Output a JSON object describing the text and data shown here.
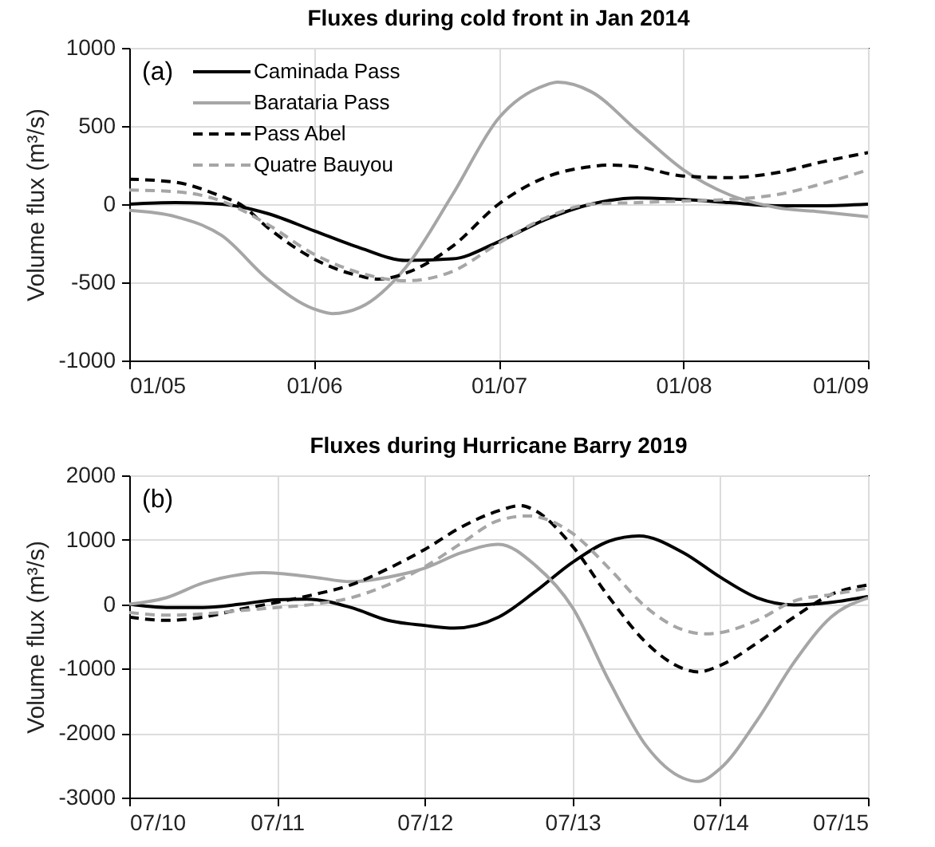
{
  "chart_data": [
    {
      "type": "line",
      "title": "Fluxes during cold front in Jan 2014",
      "ylabel": "Volume flux (m³/s)",
      "annotations": [
        "(a)"
      ],
      "xlim": [
        "--01-05",
        "--01-09"
      ],
      "xticks": [
        {
          "value": "--01-05",
          "label": "01/05"
        },
        {
          "value": "--01-06",
          "label": "01/06"
        },
        {
          "value": "--01-07",
          "label": "01/07"
        },
        {
          "value": "--01-08",
          "label": "01/08"
        },
        {
          "value": "--01-09",
          "label": "01/09"
        }
      ],
      "ylim": [
        -1000,
        1000
      ],
      "yticks": [
        -1000,
        -500,
        0,
        500,
        1000
      ],
      "grid": true,
      "legend": "top left",
      "series": [
        {
          "name": "Caminada Pass",
          "color": "#000000",
          "line_style": "solid",
          "x": [
            "--01-05T00:00",
            "--01-05T06:00",
            "--01-05T12:00",
            "--01-05T18:00",
            "--01-06T00:00",
            "--01-06T06:00",
            "--01-06T12:00",
            "--01-06T18:00",
            "--01-07T00:00",
            "--01-07T06:00",
            "--01-07T12:00",
            "--01-07T18:00",
            "--01-08T00:00",
            "--01-08T06:00",
            "--01-08T12:00",
            "--01-08T18:00",
            "--01-09T00:00"
          ],
          "values": [
            0,
            10,
            0,
            -60,
            -170,
            -280,
            -360,
            -350,
            -240,
            -100,
            0,
            40,
            30,
            10,
            -10,
            -10,
            0
          ]
        },
        {
          "name": "Barataria Pass",
          "color": "#a6a6a6",
          "line_style": "solid",
          "x": [
            "--01-05T00:00",
            "--01-05T06:00",
            "--01-05T12:00",
            "--01-05T18:00",
            "--01-06T00:00",
            "--01-06T02:24",
            "--01-06T06:00",
            "--01-06T12:00",
            "--01-06T18:00",
            "--01-07T00:00",
            "--01-07T06:00",
            "--01-07T07:41",
            "--01-07T12:00",
            "--01-07T18:00",
            "--01-08T00:00",
            "--01-08T06:00",
            "--01-08T12:00",
            "--01-08T18:00",
            "--01-09T00:00"
          ],
          "values": [
            -40,
            -80,
            -200,
            -480,
            -670,
            -700,
            -660,
            -400,
            60,
            550,
            760,
            780,
            720,
            470,
            220,
            60,
            -20,
            -50,
            -80
          ]
        },
        {
          "name": "Pass Abel",
          "color": "#000000",
          "line_style": "dashed",
          "x": [
            "--01-05T00:00",
            "--01-05T06:00",
            "--01-05T12:00",
            "--01-05T14:24",
            "--01-05T18:00",
            "--01-06T00:00",
            "--01-06T06:00",
            "--01-06T08:24",
            "--01-06T12:00",
            "--01-06T18:00",
            "--01-07T00:00",
            "--01-07T06:00",
            "--01-07T12:00",
            "--01-07T14:24",
            "--01-07T18:00",
            "--01-08T00:00",
            "--01-08T06:00",
            "--01-08T12:00",
            "--01-08T18:00",
            "--01-09T00:00"
          ],
          "values": [
            160,
            140,
            50,
            0,
            -150,
            -350,
            -460,
            -480,
            -440,
            -270,
            0,
            170,
            240,
            250,
            240,
            180,
            170,
            200,
            270,
            330
          ]
        },
        {
          "name": "Quatre Bauyou",
          "color": "#a6a6a6",
          "line_style": "dashed",
          "x": [
            "--01-05T00:00",
            "--01-05T06:00",
            "--01-05T12:00",
            "--01-05T18:00",
            "--01-06T00:00",
            "--01-06T06:00",
            "--01-06T12:00",
            "--01-06T18:00",
            "--01-07T00:00",
            "--01-07T06:00",
            "--01-07T12:00",
            "--01-07T18:00",
            "--01-08T00:00",
            "--01-08T06:00",
            "--01-08T12:00",
            "--01-08T18:00",
            "--01-09T00:00"
          ],
          "values": [
            90,
            80,
            20,
            -130,
            -320,
            -440,
            -490,
            -430,
            -250,
            -90,
            0,
            10,
            20,
            30,
            60,
            130,
            220
          ]
        }
      ]
    },
    {
      "type": "line",
      "title": "Fluxes during Hurricane Barry 2019",
      "ylabel": "Volume flux (m³/s)",
      "annotations": [
        "(b)"
      ],
      "xlim": [
        "--07-10",
        "--07-15"
      ],
      "xticks": [
        {
          "value": "--07-10",
          "label": "07/10"
        },
        {
          "value": "--07-11",
          "label": "07/11"
        },
        {
          "value": "--07-12",
          "label": "07/12"
        },
        {
          "value": "--07-13",
          "label": "07/13"
        },
        {
          "value": "--07-14",
          "label": "07/14"
        },
        {
          "value": "--07-15",
          "label": "07/15"
        }
      ],
      "ylim": [
        -3000,
        2000
      ],
      "yticks": [
        -3000,
        -2000,
        -1000,
        0,
        1000,
        2000
      ],
      "grid": true,
      "series": [
        {
          "color": "#000000",
          "line_style": "solid",
          "x": [
            "--07-10T00:00",
            "--07-10T06:00",
            "--07-10T12:00",
            "--07-10T18:00",
            "--07-11T00:00",
            "--07-11T04:48",
            "--07-11T12:00",
            "--07-11T18:00",
            "--07-12T00:00",
            "--07-12T04:48",
            "--07-12T12:00",
            "--07-12T18:00",
            "--07-13T00:00",
            "--07-13T06:00",
            "--07-13T10:48",
            "--07-13T18:00",
            "--07-14T00:00",
            "--07-14T06:00",
            "--07-14T12:00",
            "--07-14T18:00",
            "--07-15T00:00"
          ],
          "values": [
            0,
            -50,
            -50,
            0,
            70,
            80,
            -50,
            -250,
            -330,
            -370,
            -200,
            200,
            650,
            980,
            1060,
            800,
            420,
            100,
            -10,
            30,
            120
          ]
        },
        {
          "color": "#a6a6a6",
          "line_style": "solid",
          "x": [
            "--07-10T00:00",
            "--07-10T06:00",
            "--07-10T12:00",
            "--07-10T18:00",
            "--07-10T21:36",
            "--07-11T06:00",
            "--07-11T12:00",
            "--07-11T18:00",
            "--07-12T00:00",
            "--07-12T06:00",
            "--07-12T12:00",
            "--07-12T18:00",
            "--07-13T00:00",
            "--07-13T06:00",
            "--07-13T12:00",
            "--07-13T18:00",
            "--07-13T20:24",
            "--07-14T00:00",
            "--07-14T06:00",
            "--07-14T12:00",
            "--07-14T18:00",
            "--07-15T00:00"
          ],
          "values": [
            0,
            100,
            330,
            460,
            490,
            420,
            350,
            420,
            560,
            800,
            930,
            600,
            -50,
            -1200,
            -2200,
            -2700,
            -2750,
            -2550,
            -1800,
            -900,
            -200,
            100
          ]
        },
        {
          "color": "#000000",
          "line_style": "dashed",
          "x": [
            "--07-10T00:00",
            "--07-10T06:00",
            "--07-10T12:00",
            "--07-10T18:00",
            "--07-11T00:00",
            "--07-11T06:00",
            "--07-11T12:00",
            "--07-11T18:00",
            "--07-12T00:00",
            "--07-12T06:00",
            "--07-12T12:00",
            "--07-12T15:36",
            "--07-12T18:00",
            "--07-13T00:00",
            "--07-13T06:00",
            "--07-13T12:00",
            "--07-13T18:00",
            "--07-13T20:24",
            "--07-14T00:00",
            "--07-14T06:00",
            "--07-14T12:00",
            "--07-14T18:00",
            "--07-15T00:00"
          ],
          "values": [
            -200,
            -250,
            -200,
            -80,
            30,
            150,
            300,
            550,
            850,
            1200,
            1450,
            1530,
            1450,
            900,
            100,
            -600,
            -1000,
            -1050,
            -950,
            -600,
            -200,
            150,
            300
          ]
        },
        {
          "color": "#a6a6a6",
          "line_style": "dashed",
          "x": [
            "--07-10T00:00",
            "--07-10T06:00",
            "--07-10T12:00",
            "--07-10T18:00",
            "--07-11T00:00",
            "--07-11T06:00",
            "--07-11T12:00",
            "--07-11T18:00",
            "--07-12T00:00",
            "--07-12T06:00",
            "--07-12T12:00",
            "--07-12T16:48",
            "--07-13T00:00",
            "--07-13T06:00",
            "--07-13T12:00",
            "--07-13T18:00",
            "--07-13T21:36",
            "--07-14T00:00",
            "--07-14T06:00",
            "--07-14T12:00",
            "--07-14T18:00",
            "--07-15T00:00"
          ],
          "values": [
            -130,
            -170,
            -150,
            -100,
            -50,
            0,
            100,
            300,
            580,
            950,
            1300,
            1370,
            1100,
            550,
            -50,
            -400,
            -460,
            -440,
            -250,
            50,
            150,
            250
          ]
        }
      ]
    }
  ]
}
